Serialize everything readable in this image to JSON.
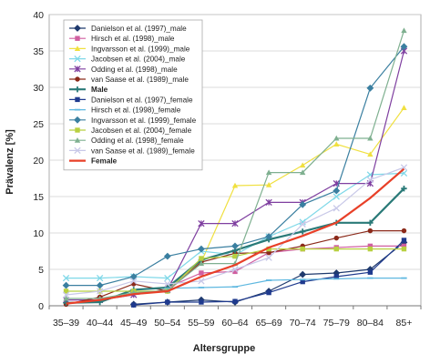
{
  "chart_data": {
    "type": "line",
    "ylabel": "Prävalenz [%]",
    "xlabel": "Altersgruppe",
    "ylim": [
      0,
      40
    ],
    "yticks": [
      0,
      5,
      10,
      15,
      20,
      25,
      30,
      35,
      40
    ],
    "categories": [
      "35–39",
      "40–44",
      "45–49",
      "50–54",
      "55–59",
      "60–64",
      "65–69",
      "70–74",
      "75–79",
      "80–84",
      "85+"
    ],
    "grid": "horizontal",
    "legend_position": "top-left",
    "series": [
      {
        "name": "Danielson et al. (1997)_male",
        "color": "#1f3a6e",
        "marker": "diamond",
        "values": [
          null,
          null,
          0.2,
          0.5,
          0.8,
          0.5,
          2.0,
          4.3,
          4.5,
          5.0,
          8.7
        ]
      },
      {
        "name": "Hirsch et al. (1998)_male",
        "color": "#d05fa0",
        "marker": "square",
        "values": [
          null,
          null,
          null,
          2.5,
          4.5,
          4.7,
          7.3,
          7.8,
          8.0,
          8.2,
          8.2
        ]
      },
      {
        "name": "Ingvarsson et al. (1999)_male",
        "color": "#f0e040",
        "marker": "triangle",
        "values": [
          null,
          null,
          null,
          2.5,
          6.0,
          16.5,
          16.6,
          19.3,
          22.2,
          20.8,
          27.2
        ]
      },
      {
        "name": "Jacobsen et al. (2004)_male",
        "color": "#7fd8e8",
        "marker": "x",
        "values": [
          3.8,
          3.8,
          4.0,
          3.8,
          7.5,
          7.0,
          9.5,
          11.5,
          15.0,
          18.0,
          18.2
        ]
      },
      {
        "name": "Odding et al. (1998)_male",
        "color": "#7f3fa0",
        "marker": "asterisk",
        "values": [
          0.8,
          0.8,
          1.5,
          2.2,
          11.3,
          11.3,
          14.2,
          14.2,
          16.8,
          16.8,
          35.0
        ]
      },
      {
        "name": "van Saase et al. (1989)_male",
        "color": "#8b2a1a",
        "marker": "circle",
        "values": [
          0.2,
          1.2,
          3.0,
          2.0,
          6.0,
          7.2,
          7.3,
          8.2,
          9.3,
          10.3,
          10.3
        ]
      },
      {
        "name": "Male",
        "color": "#2a7a78",
        "marker": "plus",
        "values": [
          0.4,
          0.5,
          2.2,
          2.5,
          6.3,
          7.6,
          9.1,
          10.2,
          11.4,
          11.4,
          16.1
        ]
      },
      {
        "name": "Danielson et al. (1997)_female",
        "color": "#1f3a8e",
        "marker": "square",
        "values": [
          null,
          null,
          0.1,
          0.5,
          0.5,
          0.6,
          1.8,
          3.3,
          4.0,
          4.6,
          9.0
        ]
      },
      {
        "name": "Hirsch et al. (1998)_female",
        "color": "#5fb8e0",
        "marker": "dash",
        "values": [
          null,
          null,
          null,
          2.4,
          2.5,
          2.6,
          3.5,
          3.6,
          3.7,
          3.8,
          3.8
        ]
      },
      {
        "name": "Ingvarsson et al. (1999)_female",
        "color": "#3a7fa0",
        "marker": "diamond",
        "values": [
          2.8,
          2.8,
          4.0,
          6.8,
          7.8,
          8.2,
          9.5,
          13.9,
          15.8,
          29.9,
          35.6
        ]
      },
      {
        "name": "Jacobsen et al. (2004)_female",
        "color": "#b8d040",
        "marker": "square",
        "values": [
          2.0,
          2.0,
          2.0,
          2.0,
          6.5,
          6.8,
          7.8,
          7.8,
          7.8,
          7.8,
          7.8
        ]
      },
      {
        "name": "Odding et al. (1998)_female",
        "color": "#7fb090",
        "marker": "triangle",
        "values": [
          1.0,
          1.0,
          1.8,
          2.1,
          5.8,
          5.8,
          18.3,
          18.3,
          23.0,
          23.0,
          37.8
        ]
      },
      {
        "name": "van Saase et al. (1989)_female",
        "color": "#c8c8e8",
        "marker": "x",
        "values": [
          1.5,
          2.0,
          3.4,
          3.0,
          3.4,
          5.0,
          6.6,
          11.2,
          13.4,
          17.3,
          19.0
        ]
      },
      {
        "name": "Female",
        "color": "#e84028",
        "marker": "none",
        "values": [
          0.3,
          0.8,
          1.6,
          2.0,
          4.0,
          5.6,
          8.0,
          9.6,
          11.4,
          14.8,
          18.8
        ]
      }
    ]
  }
}
